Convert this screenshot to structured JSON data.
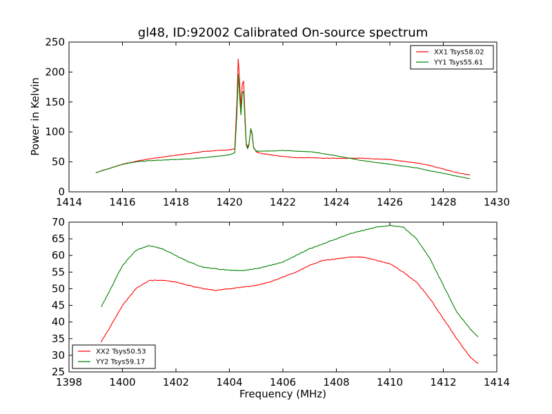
{
  "title": "gl48, ID:92002 Calibrated On-source spectrum",
  "xlabel": "Frequency (MHz)",
  "chart_data": [
    {
      "type": "line",
      "title": "gl48, ID:92002 Calibrated On-source spectrum",
      "xlabel": "",
      "ylabel": "Power in Kelvin",
      "xlim": [
        1414,
        1430
      ],
      "ylim": [
        0,
        250
      ],
      "xticks": [
        1414,
        1416,
        1418,
        1420,
        1422,
        1424,
        1426,
        1428,
        1430
      ],
      "yticks": [
        0,
        50,
        100,
        150,
        200,
        250
      ],
      "grid": false,
      "legend": "top-right",
      "series": [
        {
          "name": "XX1 Tsys58.02",
          "color": "#ff0000",
          "x": [
            1415.0,
            1415.5,
            1416.0,
            1416.5,
            1417.0,
            1417.5,
            1418.0,
            1418.5,
            1419.0,
            1419.5,
            1420.0,
            1420.2,
            1420.28,
            1420.33,
            1420.38,
            1420.43,
            1420.48,
            1420.53,
            1420.58,
            1420.63,
            1420.68,
            1420.73,
            1420.8,
            1420.85,
            1420.9,
            1421.0,
            1421.1,
            1421.5,
            1422.0,
            1422.5,
            1423.0,
            1423.5,
            1424.0,
            1424.5,
            1425.0,
            1425.5,
            1426.0,
            1426.5,
            1427.0,
            1427.5,
            1428.0,
            1428.5,
            1429.0
          ],
          "y": [
            32,
            39,
            46,
            51,
            55,
            58,
            61,
            64,
            67,
            69,
            70,
            72,
            150,
            222,
            185,
            140,
            180,
            185,
            130,
            80,
            75,
            80,
            104,
            96,
            75,
            67,
            65,
            62,
            59,
            57,
            57,
            56,
            56,
            56,
            56,
            55,
            54,
            51,
            48,
            44,
            38,
            32,
            28
          ]
        },
        {
          "name": "YY1 Tsys55.61",
          "color": "#008000",
          "x": [
            1415.0,
            1415.5,
            1416.0,
            1416.5,
            1417.0,
            1417.5,
            1418.0,
            1418.5,
            1419.0,
            1419.5,
            1420.0,
            1420.2,
            1420.28,
            1420.33,
            1420.38,
            1420.43,
            1420.48,
            1420.53,
            1420.58,
            1420.63,
            1420.68,
            1420.73,
            1420.8,
            1420.85,
            1420.9,
            1421.0,
            1421.1,
            1421.5,
            1422.0,
            1422.5,
            1423.0,
            1423.5,
            1424.0,
            1424.5,
            1425.0,
            1425.5,
            1426.0,
            1426.5,
            1427.0,
            1427.5,
            1428.0,
            1428.5,
            1429.0
          ],
          "y": [
            32,
            39,
            46,
            50,
            52,
            53,
            54,
            55,
            57,
            59,
            62,
            65,
            130,
            196,
            160,
            128,
            165,
            168,
            120,
            78,
            72,
            78,
            106,
            98,
            74,
            68,
            68,
            68,
            69,
            68,
            67,
            64,
            60,
            56,
            52,
            49,
            46,
            43,
            40,
            35,
            31,
            26,
            22
          ]
        }
      ]
    },
    {
      "type": "line",
      "title": "",
      "xlabel": "Frequency (MHz)",
      "ylabel": "",
      "xlim": [
        1398,
        1414
      ],
      "ylim": [
        25,
        70
      ],
      "xticks": [
        1398,
        1400,
        1402,
        1404,
        1406,
        1408,
        1410,
        1412,
        1414
      ],
      "yticks": [
        25,
        30,
        35,
        40,
        45,
        50,
        55,
        60,
        65,
        70
      ],
      "grid": false,
      "legend": "bottom-left",
      "series": [
        {
          "name": "XX2 Tsys50.53",
          "color": "#ff0000",
          "x": [
            1399.2,
            1399.5,
            1400.0,
            1400.5,
            1401.0,
            1401.5,
            1402.0,
            1402.5,
            1403.0,
            1403.5,
            1404.0,
            1404.5,
            1405.0,
            1405.5,
            1406.0,
            1406.5,
            1407.0,
            1407.5,
            1408.0,
            1408.5,
            1409.0,
            1409.5,
            1410.0,
            1410.5,
            1411.0,
            1411.5,
            1412.0,
            1412.5,
            1413.0,
            1413.3
          ],
          "y": [
            34,
            38,
            45,
            50,
            52.5,
            52.5,
            52,
            51,
            50,
            49.5,
            50,
            50.5,
            51,
            52,
            53.5,
            55,
            57,
            58.5,
            59,
            59.5,
            59.5,
            58.5,
            57.5,
            55,
            52,
            47,
            41,
            35,
            29.5,
            27.5
          ]
        },
        {
          "name": "YY2 Tsys59.17",
          "color": "#008000",
          "x": [
            1399.2,
            1399.5,
            1400.0,
            1400.5,
            1401.0,
            1401.5,
            1402.0,
            1402.5,
            1403.0,
            1403.5,
            1404.0,
            1404.5,
            1405.0,
            1405.5,
            1406.0,
            1406.5,
            1407.0,
            1407.5,
            1408.0,
            1408.5,
            1409.0,
            1409.5,
            1410.0,
            1410.5,
            1411.0,
            1411.5,
            1412.0,
            1412.5,
            1413.0,
            1413.3
          ],
          "y": [
            44.5,
            49,
            57,
            61.5,
            63,
            62,
            60,
            58,
            56.5,
            56,
            55.5,
            55.5,
            56,
            57,
            58,
            60,
            62,
            63.5,
            65,
            66.5,
            67.5,
            68.5,
            69,
            68.5,
            65,
            59,
            51,
            43,
            38,
            35.5
          ]
        }
      ]
    }
  ]
}
